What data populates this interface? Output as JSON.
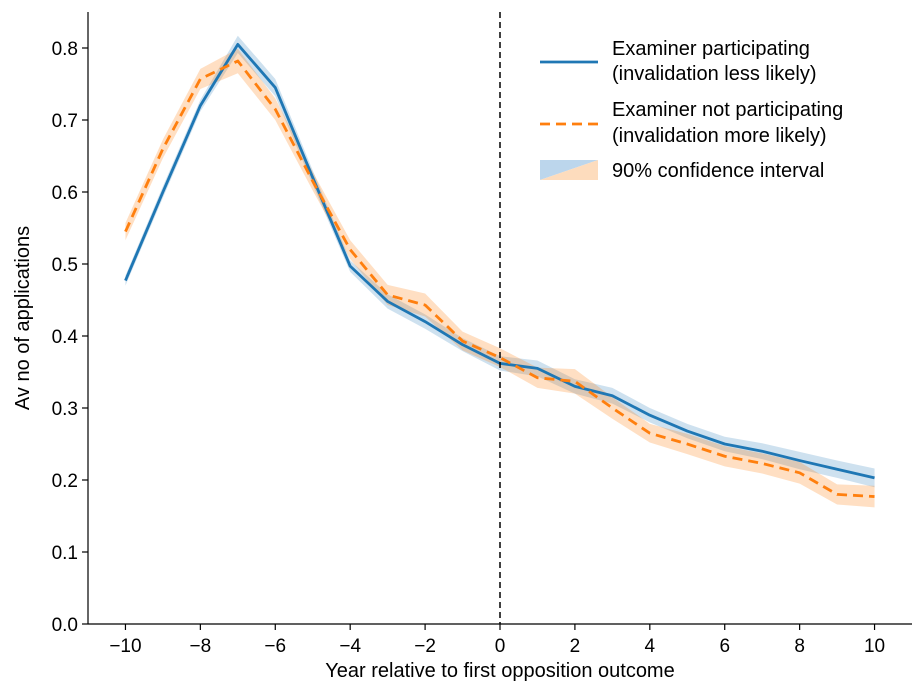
{
  "chart_data": {
    "type": "line",
    "xlabel": "Year relative to first opposition outcome",
    "ylabel": "Av no of applications",
    "xlim": [
      -11,
      11
    ],
    "ylim": [
      0.0,
      0.85
    ],
    "xticks": [
      -10,
      -8,
      -6,
      -4,
      -2,
      0,
      2,
      4,
      6,
      8,
      10
    ],
    "xtick_labels": [
      "−10",
      "−8",
      "−6",
      "−4",
      "−2",
      "0",
      "2",
      "4",
      "6",
      "8",
      "10"
    ],
    "yticks": [
      0.0,
      0.1,
      0.2,
      0.3,
      0.4,
      0.5,
      0.6,
      0.7,
      0.8
    ],
    "ytick_labels": [
      "0.0",
      "0.1",
      "0.2",
      "0.3",
      "0.4",
      "0.5",
      "0.6",
      "0.7",
      "0.8"
    ],
    "vline_x": 0,
    "x": [
      -10,
      -9,
      -8,
      -7,
      -6,
      -5,
      -4,
      -3,
      -2,
      -1,
      0,
      1,
      2,
      3,
      4,
      5,
      6,
      7,
      8,
      9,
      10
    ],
    "series": [
      {
        "name": "Examiner participating\n(invalidation less likely)",
        "legend_lines": [
          "Examiner participating",
          "(invalidation less likely)"
        ],
        "color": "#1f77b4",
        "style": "solid",
        "values": [
          0.477,
          0.6,
          0.72,
          0.805,
          0.745,
          0.62,
          0.497,
          0.448,
          0.42,
          0.388,
          0.362,
          0.355,
          0.33,
          0.317,
          0.29,
          0.268,
          0.25,
          0.24,
          0.227,
          0.215,
          0.203
        ],
        "ci_lower": [
          0.47,
          0.592,
          0.712,
          0.793,
          0.733,
          0.61,
          0.489,
          0.438,
          0.41,
          0.379,
          0.352,
          0.344,
          0.32,
          0.306,
          0.28,
          0.258,
          0.24,
          0.229,
          0.215,
          0.203,
          0.19
        ],
        "ci_upper": [
          0.484,
          0.608,
          0.728,
          0.817,
          0.757,
          0.63,
          0.505,
          0.458,
          0.43,
          0.397,
          0.372,
          0.366,
          0.34,
          0.328,
          0.3,
          0.278,
          0.26,
          0.251,
          0.239,
          0.227,
          0.216
        ]
      },
      {
        "name": "Examiner not participating\n(invalidation more likely)",
        "legend_lines": [
          "Examiner not participating",
          "(invalidation more likely)"
        ],
        "color": "#ff7f0e",
        "style": "dashed",
        "values": [
          0.545,
          0.66,
          0.757,
          0.782,
          0.715,
          0.615,
          0.52,
          0.457,
          0.443,
          0.393,
          0.37,
          0.342,
          0.337,
          0.3,
          0.265,
          0.25,
          0.233,
          0.223,
          0.21,
          0.18,
          0.177
        ],
        "ci_lower": [
          0.533,
          0.647,
          0.743,
          0.765,
          0.7,
          0.602,
          0.507,
          0.443,
          0.427,
          0.38,
          0.357,
          0.328,
          0.32,
          0.285,
          0.252,
          0.236,
          0.219,
          0.209,
          0.195,
          0.166,
          0.162
        ],
        "ci_upper": [
          0.557,
          0.673,
          0.771,
          0.799,
          0.73,
          0.628,
          0.533,
          0.471,
          0.459,
          0.406,
          0.383,
          0.356,
          0.354,
          0.315,
          0.278,
          0.264,
          0.247,
          0.237,
          0.225,
          0.194,
          0.192
        ]
      }
    ],
    "legend": {
      "placement": "top-right",
      "ci_label": "90% confidence interval",
      "ci_colors": [
        "#bcd6ec",
        "#fddcbd"
      ]
    }
  }
}
